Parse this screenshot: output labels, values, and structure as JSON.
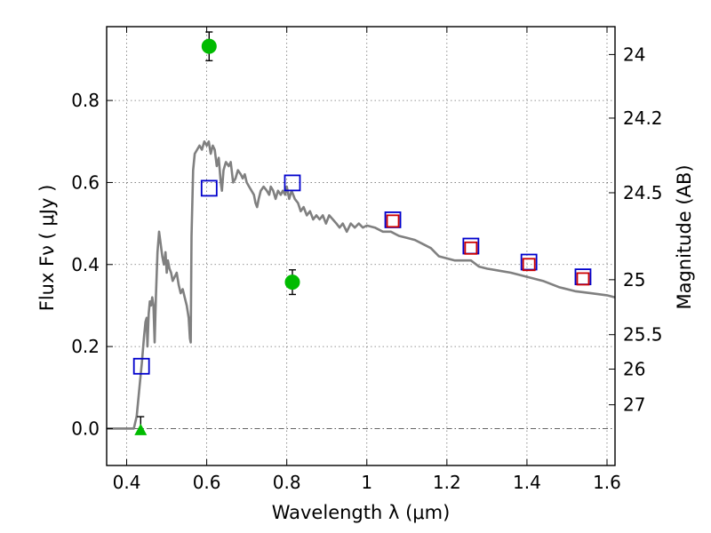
{
  "chart_data": {
    "type": "scatter",
    "title": "",
    "xlabel": "Wavelength  λ (μm)",
    "ylabel": "Flux  Fν  ( μJy )",
    "y2label": "Magnitude (AB)",
    "xlim": [
      0.35,
      1.62
    ],
    "ylim": [
      -0.09,
      0.98
    ],
    "grid": true,
    "x_ticks": [
      {
        "value": 0.4,
        "label": "0.4"
      },
      {
        "value": 0.6,
        "label": "0.6"
      },
      {
        "value": 0.8,
        "label": "0.8"
      },
      {
        "value": 1.0,
        "label": "1"
      },
      {
        "value": 1.2,
        "label": "1.2"
      },
      {
        "value": 1.4,
        "label": "1.4"
      },
      {
        "value": 1.6,
        "label": "1.6"
      }
    ],
    "y_ticks": [
      {
        "value": 0.0,
        "label": "0.0"
      },
      {
        "value": 0.2,
        "label": "0.2"
      },
      {
        "value": 0.4,
        "label": "0.4"
      },
      {
        "value": 0.6,
        "label": "0.6"
      },
      {
        "value": 0.8,
        "label": "0.8"
      }
    ],
    "y2_ticks": [
      {
        "flux": 0.912,
        "label": "24"
      },
      {
        "flux": 0.757,
        "label": "24.2"
      },
      {
        "flux": 0.575,
        "label": "24.5"
      },
      {
        "flux": 0.363,
        "label": "25"
      },
      {
        "flux": 0.229,
        "label": "25.5"
      },
      {
        "flux": 0.145,
        "label": "26"
      },
      {
        "flux": 0.058,
        "label": "27"
      }
    ],
    "model_sed": {
      "name": "model spectrum",
      "color": "#808080",
      "points": [
        [
          0.35,
          0.0
        ],
        [
          0.418,
          0.0
        ],
        [
          0.425,
          0.03
        ],
        [
          0.432,
          0.1
        ],
        [
          0.438,
          0.16
        ],
        [
          0.443,
          0.22
        ],
        [
          0.447,
          0.26
        ],
        [
          0.45,
          0.27
        ],
        [
          0.452,
          0.2
        ],
        [
          0.455,
          0.28
        ],
        [
          0.458,
          0.31
        ],
        [
          0.461,
          0.3
        ],
        [
          0.464,
          0.32
        ],
        [
          0.467,
          0.3
        ],
        [
          0.47,
          0.21
        ],
        [
          0.473,
          0.32
        ],
        [
          0.477,
          0.43
        ],
        [
          0.481,
          0.48
        ],
        [
          0.485,
          0.45
        ],
        [
          0.489,
          0.42
        ],
        [
          0.493,
          0.4
        ],
        [
          0.497,
          0.43
        ],
        [
          0.5,
          0.38
        ],
        [
          0.503,
          0.41
        ],
        [
          0.507,
          0.39
        ],
        [
          0.511,
          0.38
        ],
        [
          0.515,
          0.36
        ],
        [
          0.52,
          0.37
        ],
        [
          0.525,
          0.38
        ],
        [
          0.53,
          0.35
        ],
        [
          0.535,
          0.33
        ],
        [
          0.54,
          0.34
        ],
        [
          0.545,
          0.32
        ],
        [
          0.55,
          0.3
        ],
        [
          0.555,
          0.27
        ],
        [
          0.558,
          0.22
        ],
        [
          0.56,
          0.21
        ],
        [
          0.562,
          0.47
        ],
        [
          0.566,
          0.63
        ],
        [
          0.57,
          0.67
        ],
        [
          0.576,
          0.68
        ],
        [
          0.582,
          0.69
        ],
        [
          0.588,
          0.68
        ],
        [
          0.594,
          0.7
        ],
        [
          0.6,
          0.69
        ],
        [
          0.605,
          0.7
        ],
        [
          0.61,
          0.67
        ],
        [
          0.615,
          0.69
        ],
        [
          0.62,
          0.68
        ],
        [
          0.625,
          0.64
        ],
        [
          0.63,
          0.66
        ],
        [
          0.635,
          0.6
        ],
        [
          0.638,
          0.58
        ],
        [
          0.642,
          0.63
        ],
        [
          0.648,
          0.65
        ],
        [
          0.655,
          0.64
        ],
        [
          0.66,
          0.65
        ],
        [
          0.666,
          0.6
        ],
        [
          0.672,
          0.61
        ],
        [
          0.678,
          0.63
        ],
        [
          0.685,
          0.62
        ],
        [
          0.69,
          0.61
        ],
        [
          0.695,
          0.62
        ],
        [
          0.7,
          0.6
        ],
        [
          0.706,
          0.59
        ],
        [
          0.712,
          0.58
        ],
        [
          0.718,
          0.57
        ],
        [
          0.722,
          0.55
        ],
        [
          0.726,
          0.54
        ],
        [
          0.73,
          0.56
        ],
        [
          0.735,
          0.58
        ],
        [
          0.742,
          0.59
        ],
        [
          0.75,
          0.58
        ],
        [
          0.756,
          0.57
        ],
        [
          0.76,
          0.59
        ],
        [
          0.766,
          0.58
        ],
        [
          0.772,
          0.56
        ],
        [
          0.778,
          0.58
        ],
        [
          0.785,
          0.57
        ],
        [
          0.79,
          0.58
        ],
        [
          0.796,
          0.57
        ],
        [
          0.8,
          0.59
        ],
        [
          0.806,
          0.56
        ],
        [
          0.812,
          0.58
        ],
        [
          0.82,
          0.56
        ],
        [
          0.828,
          0.55
        ],
        [
          0.835,
          0.53
        ],
        [
          0.842,
          0.54
        ],
        [
          0.85,
          0.52
        ],
        [
          0.858,
          0.53
        ],
        [
          0.866,
          0.51
        ],
        [
          0.874,
          0.52
        ],
        [
          0.882,
          0.51
        ],
        [
          0.89,
          0.52
        ],
        [
          0.898,
          0.5
        ],
        [
          0.906,
          0.52
        ],
        [
          0.915,
          0.51
        ],
        [
          0.924,
          0.5
        ],
        [
          0.932,
          0.49
        ],
        [
          0.94,
          0.5
        ],
        [
          0.95,
          0.48
        ],
        [
          0.96,
          0.5
        ],
        [
          0.97,
          0.49
        ],
        [
          0.98,
          0.5
        ],
        [
          0.99,
          0.49
        ],
        [
          1.0,
          0.495
        ],
        [
          1.02,
          0.49
        ],
        [
          1.04,
          0.48
        ],
        [
          1.06,
          0.48
        ],
        [
          1.08,
          0.47
        ],
        [
          1.1,
          0.465
        ],
        [
          1.12,
          0.46
        ],
        [
          1.14,
          0.45
        ],
        [
          1.16,
          0.44
        ],
        [
          1.18,
          0.42
        ],
        [
          1.2,
          0.415
        ],
        [
          1.22,
          0.41
        ],
        [
          1.24,
          0.41
        ],
        [
          1.26,
          0.41
        ],
        [
          1.28,
          0.395
        ],
        [
          1.3,
          0.39
        ],
        [
          1.33,
          0.385
        ],
        [
          1.36,
          0.38
        ],
        [
          1.4,
          0.37
        ],
        [
          1.44,
          0.36
        ],
        [
          1.48,
          0.345
        ],
        [
          1.52,
          0.335
        ],
        [
          1.56,
          0.33
        ],
        [
          1.6,
          0.325
        ],
        [
          1.62,
          0.32
        ]
      ]
    },
    "series": [
      {
        "name": "model photometry (blue squares)",
        "marker": "square",
        "color": "#0000cc",
        "points": [
          {
            "x": 0.437,
            "y": 0.152
          },
          {
            "x": 0.606,
            "y": 0.586
          },
          {
            "x": 0.814,
            "y": 0.599
          },
          {
            "x": 1.065,
            "y": 0.509
          },
          {
            "x": 1.26,
            "y": 0.445
          },
          {
            "x": 1.405,
            "y": 0.406
          },
          {
            "x": 1.54,
            "y": 0.37
          }
        ]
      },
      {
        "name": "model photometry (red squares)",
        "marker": "square",
        "color": "#cc0000",
        "points": [
          {
            "x": 1.065,
            "y": 0.506
          },
          {
            "x": 1.26,
            "y": 0.44
          },
          {
            "x": 1.405,
            "y": 0.4
          },
          {
            "x": 1.54,
            "y": 0.365
          }
        ]
      },
      {
        "name": "observed photometry",
        "marker": "circle",
        "color": "#00bb00",
        "points": [
          {
            "x": 0.606,
            "y": 0.932,
            "err": 0.035
          },
          {
            "x": 0.814,
            "y": 0.357,
            "err": 0.03
          }
        ]
      },
      {
        "name": "upper limit",
        "marker": "triangle",
        "color": "#00bb00",
        "points": [
          {
            "x": 0.435,
            "y": -0.003,
            "err_top": 0.032
          }
        ]
      }
    ]
  }
}
